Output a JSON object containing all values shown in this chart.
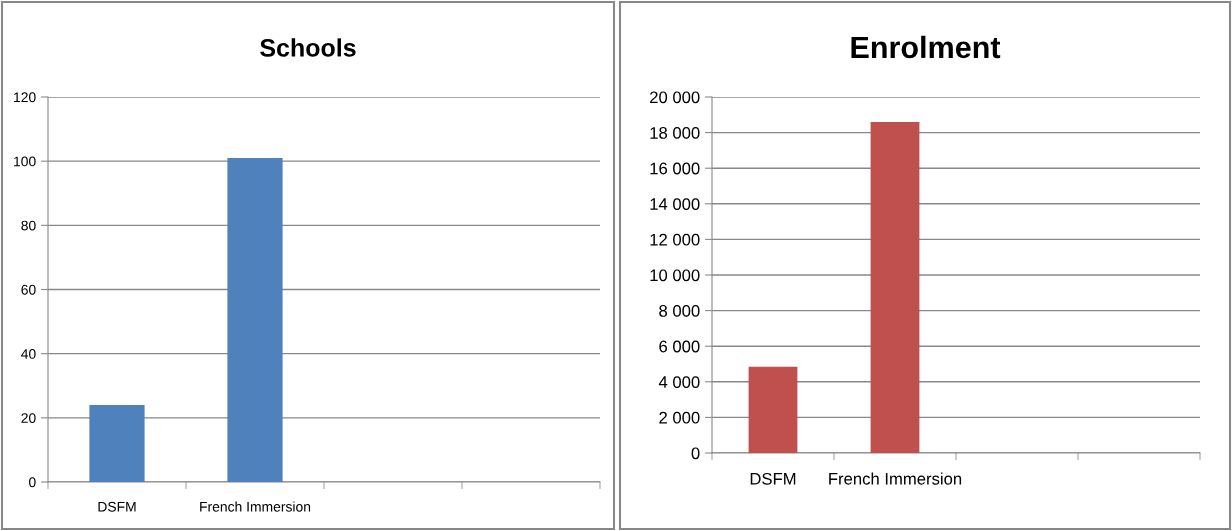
{
  "chart_data": [
    {
      "type": "bar",
      "title": "Schools",
      "categories": [
        "DSFM",
        "French Immersion",
        null,
        null
      ],
      "values": [
        24,
        101,
        null,
        null
      ],
      "color": "#4f81bd",
      "ylim": [
        0,
        120
      ],
      "yticks": [
        0,
        20,
        40,
        60,
        80,
        100,
        120
      ],
      "grid": "y",
      "legend": false
    },
    {
      "type": "bar",
      "title": "Enrolment",
      "categories": [
        "DSFM",
        "French Immersion",
        null,
        null
      ],
      "values": [
        4850,
        18600,
        null,
        null
      ],
      "color": "#c0504d",
      "ylim": [
        0,
        20000
      ],
      "yticks": [
        0,
        {
          "value": 2000,
          "label": "2 000"
        },
        {
          "value": 4000,
          "label": "4 000"
        },
        {
          "value": 6000,
          "label": "6 000"
        },
        {
          "value": 8000,
          "label": "8 000"
        },
        {
          "value": 10000,
          "label": "10 000"
        },
        {
          "value": 12000,
          "label": "12 000"
        },
        {
          "value": 14000,
          "label": "14 000"
        },
        {
          "value": 16000,
          "label": "16 000"
        },
        {
          "value": 18000,
          "label": "18 000"
        },
        {
          "value": 20000,
          "label": "20 000"
        }
      ],
      "grid": "y",
      "legend": false
    }
  ]
}
